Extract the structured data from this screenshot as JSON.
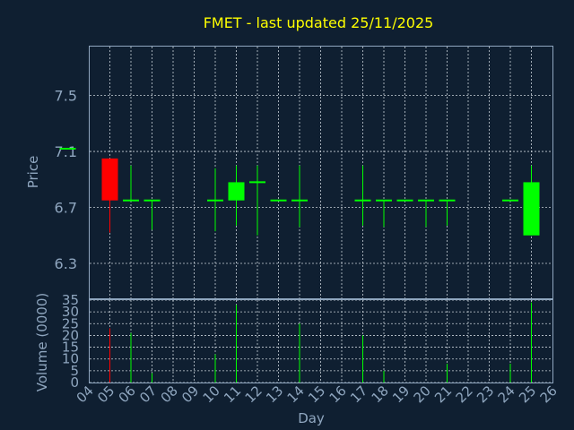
{
  "chart_data": {
    "type": "candlestick",
    "title": "FMET - last updated 25/11/2025",
    "xlabel": "Day",
    "ylabel": "Price",
    "volume_label": "Volume (0000)",
    "price_ticks": [
      "6.3",
      "6.7",
      "7.1",
      "7.5"
    ],
    "price_ylim": [
      6.05,
      7.85
    ],
    "volume_ticks": [
      "0",
      "5",
      "10",
      "15",
      "20",
      "25",
      "30",
      "35"
    ],
    "volume_ylim": [
      0,
      35
    ],
    "x_ticks": [
      "04",
      "05",
      "06",
      "07",
      "08",
      "09",
      "10",
      "11",
      "12",
      "13",
      "14",
      "15",
      "16",
      "17",
      "18",
      "19",
      "20",
      "21",
      "22",
      "23",
      "24",
      "25",
      "26"
    ],
    "grid": true,
    "colors": {
      "up": "#00ff00",
      "down": "#ff0000",
      "background": "#0f1f31",
      "title": "#ffff00",
      "axis_text": "#8fa6bf"
    },
    "candles": [
      {
        "day": "03",
        "open": 7.12,
        "high": 7.12,
        "low": 7.12,
        "close": 7.12,
        "volume": 0
      },
      {
        "day": "05",
        "open": 7.05,
        "high": 7.05,
        "low": 6.52,
        "close": 6.75,
        "volume": 23
      },
      {
        "day": "06",
        "open": 6.75,
        "high": 7.0,
        "low": 6.75,
        "close": 6.75,
        "volume": 21
      },
      {
        "day": "07",
        "open": 6.75,
        "high": 6.75,
        "low": 6.54,
        "close": 6.75,
        "volume": 4
      },
      {
        "day": "10",
        "open": 6.75,
        "high": 6.98,
        "low": 6.53,
        "close": 6.75,
        "volume": 12
      },
      {
        "day": "11",
        "open": 6.75,
        "high": 7.0,
        "low": 6.57,
        "close": 6.88,
        "volume": 33
      },
      {
        "day": "12",
        "open": 6.88,
        "high": 7.0,
        "low": 6.5,
        "close": 6.88,
        "volume": 0
      },
      {
        "day": "13",
        "open": 6.75,
        "high": 6.75,
        "low": 6.75,
        "close": 6.75,
        "volume": 0
      },
      {
        "day": "14",
        "open": 6.75,
        "high": 7.0,
        "low": 6.56,
        "close": 6.75,
        "volume": 25
      },
      {
        "day": "17",
        "open": 6.75,
        "high": 7.0,
        "low": 6.57,
        "close": 6.75,
        "volume": 20
      },
      {
        "day": "18",
        "open": 6.75,
        "high": 6.75,
        "low": 6.56,
        "close": 6.75,
        "volume": 5
      },
      {
        "day": "19",
        "open": 6.75,
        "high": 6.75,
        "low": 6.75,
        "close": 6.75,
        "volume": 0
      },
      {
        "day": "20",
        "open": 6.75,
        "high": 6.75,
        "low": 6.56,
        "close": 6.75,
        "volume": 0
      },
      {
        "day": "21",
        "open": 6.75,
        "high": 6.75,
        "low": 6.57,
        "close": 6.75,
        "volume": 8
      },
      {
        "day": "24",
        "open": 6.75,
        "high": 6.75,
        "low": 6.75,
        "close": 6.75,
        "volume": 8
      },
      {
        "day": "25",
        "open": 6.5,
        "high": 7.0,
        "low": 6.5,
        "close": 6.88,
        "volume": 34
      }
    ]
  }
}
